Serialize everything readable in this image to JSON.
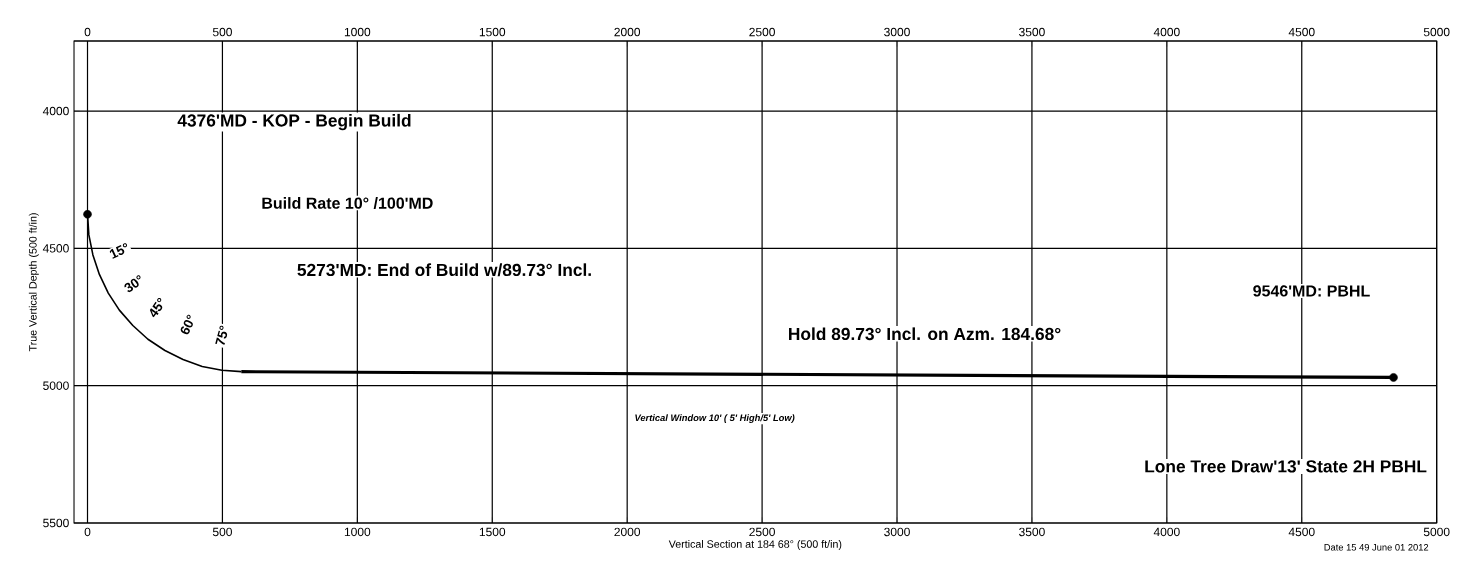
{
  "chart_data": {
    "type": "line",
    "xlabel": "Vertical Section at 184 68° (500 ft/in)",
    "ylabel": "True Vertical Depth (500 ft/in)",
    "xlim": [
      -50,
      5000
    ],
    "xticks": [
      0,
      500,
      1000,
      1500,
      2000,
      2500,
      3000,
      3500,
      4000,
      4500,
      5000
    ],
    "x2lim": [
      -50,
      5000
    ],
    "x2ticks": [
      0,
      500,
      1000,
      1500,
      2000,
      2500,
      3000,
      3500,
      4000,
      4500,
      5000
    ],
    "ylim": [
      5500,
      3745
    ],
    "yticks": [
      4000,
      4500,
      5000,
      5500
    ],
    "grid": true,
    "series": [
      {
        "color": "#000000",
        "line_style": "solid",
        "x": [
          0,
          5,
          20,
          44,
          77,
          118,
          168,
          224,
          287,
          354,
          425,
          498,
          570
        ],
        "values": [
          4376,
          4451,
          4524,
          4595,
          4663,
          4725,
          4781,
          4831,
          4872,
          4905,
          4930,
          4944,
          4949
        ]
      },
      {
        "color": "#000000",
        "line_style": "solid",
        "x": [
          570,
          4840
        ],
        "values": [
          4949,
          4970
        ]
      },
      {
        "type": "scatter",
        "color": "#000000",
        "marker": "circle",
        "x": [
          0,
          4840
        ],
        "values": [
          4376,
          4970
        ]
      }
    ],
    "annotations": [
      "4376'MD - KOP - Begin Build",
      "Build Rate 10° /100'MD",
      "5273'MD: End of Build w/89.73° Incl.",
      "Hold 89.73° Incl. on Azm. 184.68°",
      "9546'MD: PBHL",
      "Vertical Window 10' ( 5' High/5' Low)",
      "Lone Tree Draw'13' State 2H PBHL",
      "15°",
      "30°",
      "45°",
      "60°",
      "75°",
      "Date 15 49 June 01 2012"
    ]
  }
}
